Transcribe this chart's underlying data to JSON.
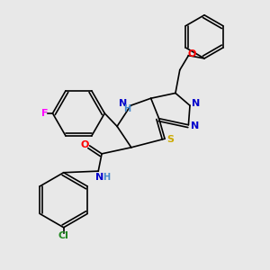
{
  "background_color": "#e8e8e8",
  "fig_size": [
    3.0,
    3.0
  ],
  "dpi": 100,
  "bond_lw": 1.2,
  "atom_colors": {
    "F": "#ff00ff",
    "O": "#ff0000",
    "N": "#0000cc",
    "S": "#ccaa00",
    "Cl": "#228822",
    "C": "black",
    "H": "#4488cc"
  }
}
